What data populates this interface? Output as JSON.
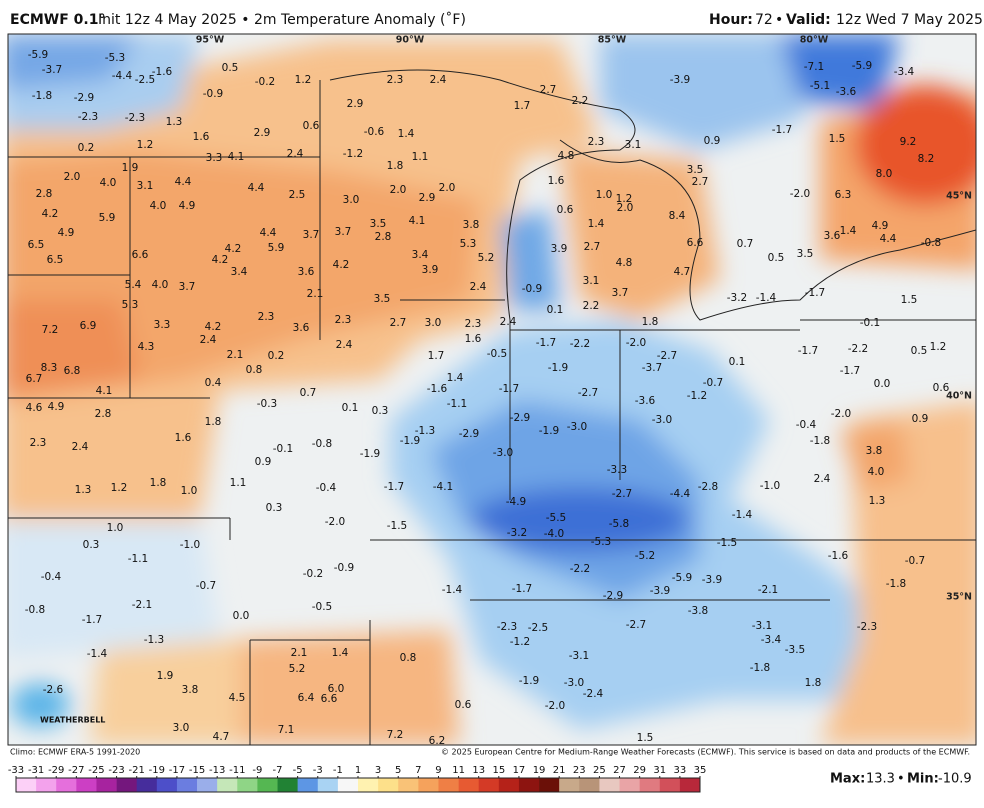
{
  "header": {
    "model": "ECMWF 0.1°",
    "subtitle": "Init 12z 4 May 2025 • 2m Temperature Anomaly (˚F)",
    "hour_label": "Hour:",
    "hour": "72",
    "separator": "•",
    "valid_label": "Valid:",
    "valid": "12z Wed 7 May 2025"
  },
  "map": {
    "longitudes": [
      "95°W",
      "90°W",
      "85°W",
      "80°W"
    ],
    "latitudes": [
      "45°N",
      "40°N",
      "35°N"
    ],
    "watermark": "WEATHERBELL",
    "point_values": [
      "-5.9",
      "-5.3",
      "-3.7",
      "-4.4",
      "-2.5",
      "-1.6",
      "0.5",
      "-0.2",
      "1.2",
      "2.3",
      "2.4",
      "2.7",
      "2.2",
      "1.7",
      "-3.9",
      "-7.1",
      "-5.9",
      "-3.4",
      "-5.1",
      "-3.6",
      "-1.8",
      "-2.9",
      "-0.9",
      "-2.3",
      "-2.3",
      "1.3",
      "2.9",
      "0.6",
      "2.9",
      "1.6",
      "-0.6",
      "1.4",
      "0.9",
      "-1.7",
      "9.2",
      "8.2",
      "2.3",
      "3.1",
      "0.2",
      "1.2",
      "3.3",
      "4.1",
      "2.4",
      "-1.2",
      "1.1",
      "1.8",
      "4.8",
      "1.5",
      "1.9",
      "2.0",
      "4.0",
      "3.1",
      "4.4",
      "4.4",
      "2.5",
      "3.0",
      "2.0",
      "2.9",
      "2.0",
      "3.5",
      "2.7",
      "8.0",
      "1.6",
      "1.0",
      "1.2",
      "2.0",
      "-2.0",
      "6.3",
      "2.8",
      "4.2",
      "5.9",
      "4.0",
      "4.9",
      "4.9",
      "4.4",
      "3.7",
      "3.7",
      "3.5",
      "4.1",
      "2.8",
      "3.8",
      "0.6",
      "1.4",
      "8.4",
      "3.6",
      "1.4",
      "4.9",
      "4.4",
      "-0.8",
      "6.5",
      "6.5",
      "6.6",
      "4.2",
      "5.9",
      "4.2",
      "3.9",
      "2.7",
      "3.4",
      "5.3",
      "5.2",
      "6.6",
      "0.7",
      "0.5",
      "3.5",
      "4.8",
      "3.4",
      "3.6",
      "4.2",
      "3.9",
      "4.7",
      "5.4",
      "4.0",
      "3.7",
      "2.1",
      "3.1",
      "2.4",
      "-0.9",
      "3.7",
      "3.5",
      "-3.2",
      "-1.4",
      "-1.7",
      "1.5",
      "5.3",
      "2.2",
      "0.1",
      "2.3",
      "3.6",
      "2.3",
      "2.7",
      "3.0",
      "2.3",
      "2.4",
      "1.8",
      "-0.1",
      "7.2",
      "6.9",
      "3.3",
      "4.2",
      "2.4",
      "1.6",
      "-1.7",
      "-2.2",
      "-2.0",
      "-2.7",
      "-1.7",
      "-2.2",
      "0.5",
      "1.2",
      "4.3",
      "2.4",
      "2.1",
      "0.2",
      "1.7",
      "-0.5",
      "8.3",
      "6.8",
      "6.7",
      "0.8",
      "-1.9",
      "-3.7",
      "0.1",
      "-1.7",
      "0.4",
      "1.4",
      "4.1",
      "-1.6",
      "-1.7",
      "-2.7",
      "-0.7",
      "0.0",
      "0.6",
      "0.7",
      "4.6",
      "4.9",
      "-0.3",
      "0.1",
      "0.3",
      "-1.1",
      "-3.6",
      "-1.2",
      "-3.0",
      "2.8",
      "1.8",
      "-2.9",
      "-0.4",
      "-2.0",
      "0.9",
      "-1.3",
      "-2.9",
      "-1.9",
      "-3.0",
      "-1.8",
      "1.6",
      "2.3",
      "2.4",
      "-1.9",
      "-0.1",
      "-0.8",
      "3.8",
      "0.9",
      "-1.9",
      "-3.0",
      "-3.3",
      "4.0",
      "1.8",
      "1.1",
      "-0.4",
      "-1.7",
      "-4.1",
      "-2.7",
      "-4.4",
      "-2.8",
      "-1.0",
      "2.4",
      "1.3",
      "1.2",
      "1.0",
      "-4.9",
      "0.3",
      "-1.4",
      "1.3",
      "1.0",
      "-2.0",
      "-1.5",
      "-5.5",
      "-5.8",
      "-3.2",
      "-4.0",
      "0.3",
      "-1.0",
      "-5.3",
      "-1.5",
      "-0.7",
      "-1.1",
      "-5.2",
      "-1.6",
      "-0.2",
      "-0.9",
      "-2.2",
      "-0.4",
      "-5.9",
      "-3.9",
      "-0.7",
      "-1.4",
      "-1.7",
      "-2.9",
      "-3.9",
      "-2.1",
      "-1.8",
      "-0.8",
      "-2.1",
      "-0.5",
      "-3.8",
      "-1.7",
      "0.0",
      "-2.3",
      "-2.5",
      "-2.7",
      "-3.1",
      "-2.3",
      "-1.3",
      "-1.2",
      "-3.4",
      "-1.4",
      "-3.1",
      "-3.5",
      "2.1",
      "1.4",
      "0.8",
      "5.2",
      "-1.8",
      "1.9",
      "-1.9",
      "-3.0",
      "1.8",
      "-2.6",
      "3.8",
      "6.0",
      "-2.4",
      "4.5",
      "6.4",
      "6.6",
      "-2.0",
      "0.6",
      "3.0",
      "7.1",
      "4.7",
      "7.2",
      "6.2",
      "1.5"
    ]
  },
  "footer": {
    "climo": "Climo: ECMWF ERA-5 1991-2020",
    "copyright": "© 2025 European Centre for Medium-Range Weather Forecasts (ECMWF). This service is based on data and products of the ECMWF."
  },
  "colorbar": {
    "ticks": [
      -33,
      -31,
      -29,
      -27,
      -25,
      -23,
      -21,
      -19,
      -17,
      -15,
      -13,
      -11,
      -9,
      -7,
      -5,
      -3,
      -1,
      1,
      3,
      5,
      7,
      9,
      11,
      13,
      15,
      17,
      19,
      21,
      23,
      25,
      27,
      29,
      31,
      33,
      35
    ],
    "colors": [
      "#fcd0f7",
      "#f3a2ec",
      "#e56fdc",
      "#cc3fc4",
      "#a7239f",
      "#74177d",
      "#462d9c",
      "#4d4fc9",
      "#6b7de0",
      "#9aaeea",
      "#c5e7b8",
      "#8fd586",
      "#55b752",
      "#218234",
      "#5d96e4",
      "#a9d3f3",
      "#f7f7f7",
      "#fff2b0",
      "#fde08a",
      "#f9c277",
      "#f5a25c",
      "#ef7f45",
      "#e75a32",
      "#d43a26",
      "#b52219",
      "#8d1410",
      "#6b1008",
      "#c8a98a",
      "#b89478",
      "#e8c8c0",
      "#e9a4a6",
      "#e07a80",
      "#d2505a",
      "#b8283a"
    ]
  },
  "stats": {
    "max_label": "Max:",
    "max": "13.3",
    "separator": "•",
    "min_label": "Min:",
    "min": "-10.9"
  }
}
